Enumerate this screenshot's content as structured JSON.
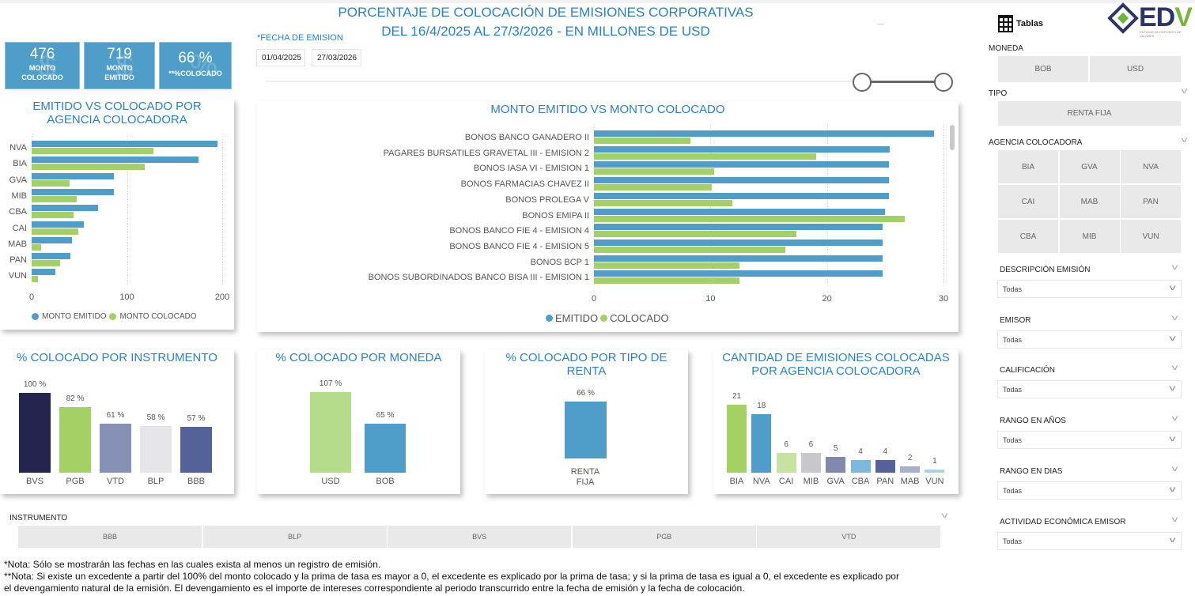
{
  "header": {
    "title_line1": "PORCENTAJE DE COLOCACIÓN DE EMISIONES CORPORATIVAS",
    "title_line2": "DEL 16/4/2025 AL 27/3/2026 - EN MILLONES DE USD"
  },
  "kpis": [
    {
      "value": "476",
      "label1": "MONTO",
      "label2": "COLOCADO"
    },
    {
      "value": "719",
      "label1": "MONTO",
      "label2": "EMITIDO"
    },
    {
      "value": "66 %",
      "label1": "**%COLOCADO",
      "label2": ""
    }
  ],
  "date_filter": {
    "label": "*FECHA DE EMISION",
    "start": "01/04/2025",
    "end": "27/03/2026",
    "range_fraction": [
      0.88,
      1.0
    ]
  },
  "colors": {
    "emitido": "#4f9ec9",
    "colocado": "#a3d165",
    "title": "#2a82c4"
  },
  "chart_data": [
    {
      "type": "bar",
      "orientation": "horizontal",
      "title": "EMITIDO VS COLOCADO POR AGENCIA COLOCADORA",
      "title1": "EMITIDO VS COLOCADO POR",
      "title2": "AGENCIA COLOCADORA",
      "categories": [
        "NVA",
        "BIA",
        "GVA",
        "MIB",
        "CBA",
        "CAI",
        "MAB",
        "PAN",
        "VUN"
      ],
      "series": [
        {
          "name": "MONTO EMITIDO",
          "values": [
            195,
            175,
            86,
            86,
            70,
            55,
            42,
            41,
            25
          ]
        },
        {
          "name": "MONTO COLOCADO",
          "values": [
            128,
            119,
            40,
            47,
            44,
            49,
            10,
            30,
            7
          ]
        }
      ],
      "xlim": [
        0,
        200
      ],
      "xticks": [
        "0",
        "100",
        "200"
      ],
      "legend": "bottom"
    },
    {
      "type": "bar",
      "orientation": "horizontal",
      "title": "MONTO EMITIDO VS MONTO COLOCADO",
      "categories": [
        "BONOS BANCO GANADERO II",
        "PAGARES BURSATILES GRAVETAL III - EMISION 2",
        "BONOS IASA VI - EMISION 1",
        "BONOS FARMACIAS CHAVEZ II",
        "BONOS PROLEGA V",
        "BONOS EMIPA II",
        "BONOS BANCO FIE 4 - EMISION 4",
        "BONOS BANCO FIE 4 - EMISION 5",
        "BONOS BCP 1",
        "BONOS SUBORDINADOS BANCO BISA III - EMISION 1"
      ],
      "series": [
        {
          "name": "EMITIDO",
          "values": [
            29.2,
            25.4,
            25.3,
            25.3,
            25.3,
            25.0,
            24.8,
            24.8,
            24.8,
            24.8
          ]
        },
        {
          "name": "COLOCADO",
          "values": [
            8.3,
            19.1,
            10.3,
            10.1,
            11.9,
            26.7,
            17.4,
            16.4,
            12.5,
            12.5
          ]
        }
      ],
      "xlim": [
        0,
        30
      ],
      "xticks": [
        "0",
        "10",
        "20",
        "30"
      ],
      "legend": "bottom"
    },
    {
      "type": "bar",
      "title": "% COLOCADO POR INSTRUMENTO",
      "categories": [
        "BVS",
        "PGB",
        "VTD",
        "BLP",
        "BBB"
      ],
      "values": [
        100,
        82,
        61,
        58,
        57
      ],
      "labels": [
        "100 %",
        "82 %",
        "61 %",
        "58 %",
        "57 %"
      ],
      "colors": [
        "#23254f",
        "#a3d165",
        "#8790b5",
        "#e6e6ea",
        "#55629a"
      ],
      "ymax": 100
    },
    {
      "type": "bar",
      "title": "% COLOCADO POR MONEDA",
      "categories": [
        "USD",
        "BOB"
      ],
      "values": [
        107,
        65
      ],
      "labels": [
        "107 %",
        "65 %"
      ],
      "colors": [
        "#b5dc8a",
        "#4f9ec9"
      ],
      "ymax": 107
    },
    {
      "type": "bar",
      "title": "% COLOCADO POR TIPO DE RENTA",
      "title1": "% COLOCADO POR TIPO DE",
      "title2": "RENTA",
      "categories": [
        "RENTA FIJA"
      ],
      "cat1": "RENTA",
      "cat2": "FIJA",
      "values": [
        66
      ],
      "labels": [
        "66 %"
      ],
      "colors": [
        "#4f9ec9"
      ],
      "ymax": 90
    },
    {
      "type": "bar",
      "title": "CANTIDAD DE EMISIONES COLOCADAS POR AGENCIA COLOCADORA",
      "title1": "CANTIDAD DE EMISIONES COLOCADAS",
      "title2": "POR AGENCIA COLOCADORA",
      "categories": [
        "BIA",
        "NVA",
        "CAI",
        "MIB",
        "GVA",
        "CBA",
        "PAN",
        "MAB",
        "VUN"
      ],
      "values": [
        21,
        18,
        6,
        6,
        5,
        4,
        4,
        2,
        1
      ],
      "labels": [
        "21",
        "18",
        "6",
        "6",
        "5",
        "4",
        "4",
        "2",
        "1"
      ],
      "colors": [
        "#a3d165",
        "#4f9ec9",
        "#c7e3a2",
        "#c8c8cc",
        "#8189ad",
        "#7fb8dd",
        "#55629a",
        "#a9b0cc",
        "#a9d2ea"
      ],
      "ymax": 21
    }
  ],
  "instrumento": {
    "label": "INSTRUMENTO",
    "options": [
      "BBB",
      "BLP",
      "BVS",
      "PGB",
      "VTD"
    ]
  },
  "notes": [
    "*Nota: Sólo se mostrarán las fechas en las cuales exista al menos un registro de emisión.",
    "**Nota: Si existe un excedente a partir del 100% del monto colocado y la prima de tasa es mayor a 0, el excedente es explicado por la prima de tasa; y si la prima de tasa es igual a 0, el excedente es explicado por",
    "el devengamiento natural de la emisión. El devengamiento es el importe de intereses correspondiente al periodo transcurrido entre la fecha de emisión y la fecha de colocación."
  ],
  "sidebar": {
    "tablas": "Tablas",
    "logo": "EDV",
    "logo_sub": "ENTIDAD DE DEPOSITO DE VALORES",
    "moneda": {
      "label": "MONEDA",
      "options": [
        "BOB",
        "USD"
      ]
    },
    "tipo": {
      "label": "TIPO",
      "options": [
        "RENTA FIJA"
      ]
    },
    "agencia": {
      "label": "AGENCIA COLOCADORA",
      "options": [
        "BIA",
        "GVA",
        "NVA",
        "CAI",
        "MAB",
        "PAN",
        "CBA",
        "MIB",
        "VUN"
      ]
    },
    "dropdowns": [
      {
        "label": "DESCRIPCIÓN EMISIÓN",
        "value": "Todas"
      },
      {
        "label": "EMISOR",
        "value": "Todas"
      },
      {
        "label": "CALIFICACIÓN",
        "value": "Todas"
      },
      {
        "label": "RANGO EN AÑOS",
        "value": "Todas"
      },
      {
        "label": "RANGO EN DIAS",
        "value": "Todas"
      },
      {
        "label": "ACTIVIDAD ECONÓMICA EMISOR",
        "value": "Todas"
      }
    ]
  }
}
